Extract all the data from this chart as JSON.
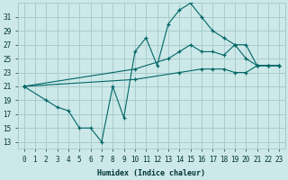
{
  "xlabel": "Humidex (Indice chaleur)",
  "background_color": "#cce8e8",
  "grid_color": "#aacccc",
  "line_color": "#006666",
  "xlim": [
    -0.5,
    23.5
  ],
  "ylim": [
    12,
    33
  ],
  "yticks": [
    13,
    15,
    17,
    19,
    21,
    23,
    25,
    27,
    29,
    31
  ],
  "xticks": [
    0,
    1,
    2,
    3,
    4,
    5,
    6,
    7,
    8,
    9,
    10,
    11,
    12,
    13,
    14,
    15,
    16,
    17,
    18,
    19,
    20,
    21,
    22,
    23
  ],
  "line1_x": [
    0,
    2,
    3,
    4,
    5,
    6,
    7,
    8,
    9,
    10,
    11,
    12,
    13,
    14,
    15,
    16,
    17,
    18,
    19,
    20,
    21,
    22,
    23
  ],
  "line1_y": [
    21,
    19,
    18,
    17.5,
    15,
    15,
    13,
    21,
    16.5,
    26,
    28,
    24,
    30,
    32,
    33,
    31,
    29,
    28,
    27,
    25,
    24,
    24,
    24
  ],
  "line2_x": [
    0,
    10,
    13,
    14,
    15,
    16,
    17,
    18,
    19,
    20,
    21,
    22,
    23
  ],
  "line2_y": [
    21,
    23.5,
    25,
    26,
    27,
    26,
    26,
    25.5,
    27,
    27,
    24,
    24,
    24
  ],
  "line3_x": [
    0,
    10,
    14,
    16,
    17,
    18,
    19,
    20,
    21,
    22,
    23
  ],
  "line3_y": [
    21,
    22,
    23,
    23.5,
    23.5,
    23.5,
    23,
    23,
    24,
    24,
    24
  ]
}
